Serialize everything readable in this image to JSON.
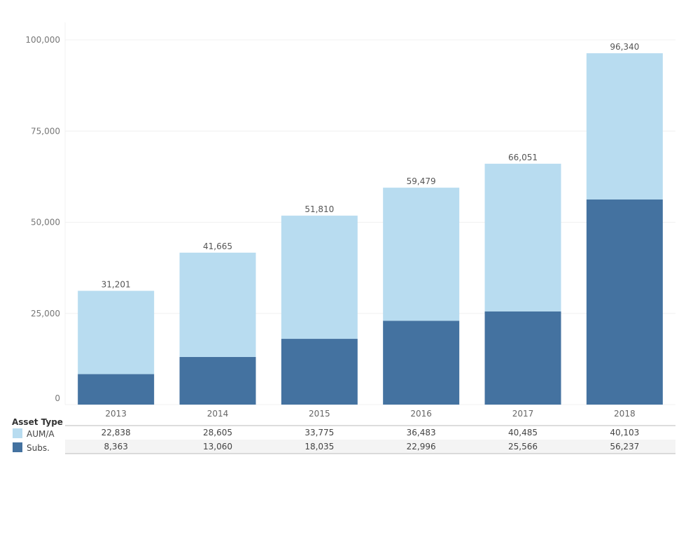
{
  "chart_data": {
    "type": "bar",
    "stacked": true,
    "categories": [
      "2013",
      "2014",
      "2015",
      "2016",
      "2017",
      "2018"
    ],
    "series": [
      {
        "name": "Subs.",
        "color": "#4472a0",
        "values": [
          8363,
          13060,
          18035,
          22996,
          25566,
          56237
        ]
      },
      {
        "name": "AUM/A",
        "color": "#b8dcf0",
        "values": [
          22838,
          28605,
          33775,
          36483,
          40485,
          40103
        ]
      }
    ],
    "totals": [
      "31,201",
      "41,665",
      "51,810",
      "59,479",
      "66,051",
      "96,340"
    ],
    "ylim": [
      0,
      100000
    ],
    "yticks": [
      0,
      25000,
      50000,
      75000,
      100000
    ],
    "ytick_labels": [
      "0",
      "25,000",
      "50,000",
      "75,000",
      "100,000"
    ],
    "grid": true,
    "legend": {
      "title": "Asset Type",
      "position": "bottom-left"
    },
    "table": {
      "rows": [
        {
          "label": "AUM/A",
          "values": [
            "22,838",
            "28,605",
            "33,775",
            "36,483",
            "40,485",
            "40,103"
          ]
        },
        {
          "label": "Subs.",
          "values": [
            "8,363",
            "13,060",
            "18,035",
            "22,996",
            "25,566",
            "56,237"
          ]
        }
      ]
    }
  }
}
